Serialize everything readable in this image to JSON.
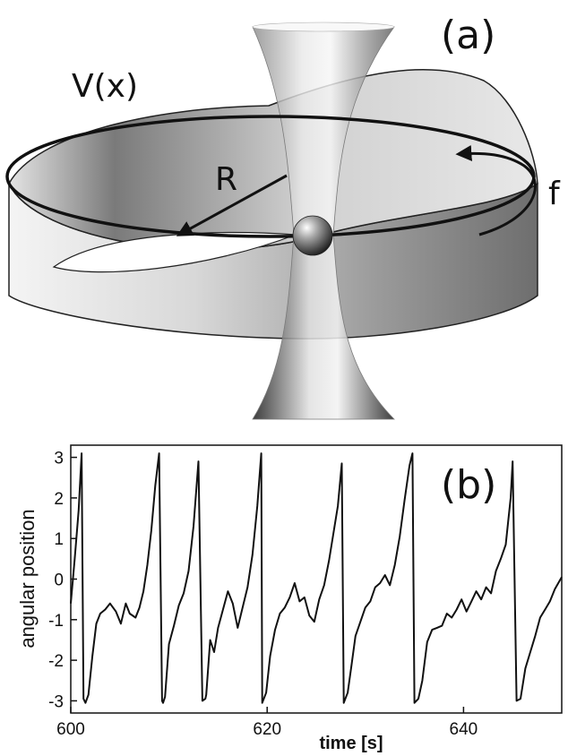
{
  "panel_a": {
    "label": "(a)",
    "potential_label": "V(x)",
    "radius_label": "R",
    "force_label": "f"
  },
  "panel_b": {
    "label": "(b)"
  },
  "chart_data": {
    "type": "line",
    "title": "",
    "xlabel": "time [s]",
    "ylabel": "angular position",
    "xlim": [
      600,
      650
    ],
    "ylim": [
      -3.3,
      3.3
    ],
    "xticks": [
      600,
      620,
      640
    ],
    "yticks": [
      3,
      2,
      1,
      0,
      -1,
      -2,
      -3
    ],
    "grid": false,
    "series": [
      {
        "color": "#111111",
        "x": [
          600.0,
          600.4,
          600.8,
          601.1,
          601.3,
          601.5,
          601.8,
          602.2,
          602.6,
          603.0,
          603.5,
          604.0,
          604.6,
          605.1,
          605.6,
          606.0,
          606.6,
          607.0,
          607.4,
          607.8,
          608.2,
          608.6,
          609.0,
          609.3,
          609.4,
          609.6,
          610.0,
          610.5,
          611.0,
          611.5,
          612.0,
          612.5,
          613.0,
          613.4,
          613.7,
          613.8,
          614.2,
          614.6,
          615.0,
          615.5,
          616.0,
          616.5,
          617.0,
          617.5,
          618.0,
          618.5,
          619.0,
          619.4,
          619.5,
          619.9,
          620.3,
          620.8,
          621.3,
          621.8,
          622.3,
          622.8,
          623.3,
          623.8,
          624.3,
          624.8,
          625.3,
          625.8,
          626.3,
          626.8,
          627.2,
          627.6,
          627.8,
          628.2,
          628.6,
          629.0,
          629.5,
          630.0,
          630.5,
          631.0,
          631.5,
          632.0,
          632.5,
          633.0,
          633.5,
          634.0,
          634.5,
          634.8,
          635.0,
          635.4,
          635.8,
          636.3,
          636.8,
          637.3,
          637.8,
          638.3,
          638.8,
          639.3,
          639.8,
          640.3,
          640.8,
          641.3,
          641.8,
          642.3,
          642.8,
          643.3,
          643.8,
          644.3,
          644.8,
          645.0,
          645.4,
          645.8,
          646.3,
          646.8,
          647.3,
          647.8,
          648.3,
          648.8,
          649.3,
          650.0
        ],
        "y": [
          -0.6,
          0.5,
          1.7,
          3.1,
          -2.95,
          -3.05,
          -2.85,
          -1.9,
          -1.1,
          -0.85,
          -0.75,
          -0.6,
          -0.8,
          -1.1,
          -0.6,
          -0.85,
          -0.95,
          -0.7,
          -0.3,
          0.35,
          1.2,
          2.3,
          3.1,
          -3.0,
          -3.05,
          -2.9,
          -1.6,
          -1.15,
          -0.65,
          -0.35,
          0.2,
          1.3,
          2.9,
          -3.0,
          -2.95,
          -2.85,
          -1.5,
          -1.8,
          -1.2,
          -0.75,
          -0.3,
          -0.6,
          -1.2,
          -0.7,
          -0.2,
          0.6,
          1.8,
          3.1,
          -3.05,
          -2.8,
          -1.9,
          -1.25,
          -0.85,
          -0.7,
          -0.45,
          -0.1,
          -0.55,
          -0.45,
          -0.9,
          -1.05,
          -0.5,
          -0.15,
          0.45,
          1.2,
          1.8,
          2.85,
          -3.05,
          -2.8,
          -2.1,
          -1.4,
          -1.05,
          -0.7,
          -0.55,
          -0.2,
          -0.1,
          0.1,
          -0.15,
          0.35,
          1.05,
          1.95,
          2.8,
          3.1,
          -3.05,
          -2.95,
          -2.5,
          -1.55,
          -1.25,
          -1.2,
          -1.15,
          -0.85,
          -0.95,
          -0.75,
          -0.5,
          -0.8,
          -0.55,
          -0.3,
          -0.5,
          -0.2,
          -0.35,
          0.2,
          0.5,
          0.85,
          2.0,
          2.9,
          -3.0,
          -2.95,
          -2.2,
          -1.8,
          -1.4,
          -0.95,
          -0.75,
          -0.55,
          -0.25,
          0.05
        ]
      }
    ]
  }
}
